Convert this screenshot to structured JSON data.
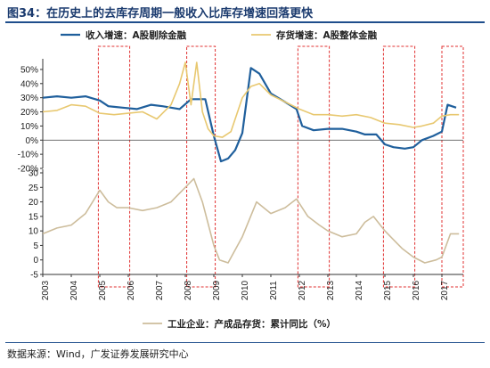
{
  "title": "图34：在历史上的去库存周期一般收入比库存增速回落更快",
  "source": "数据来源：Wind，广发证券发展研究中心",
  "colors": {
    "revenue": "#1f5f9c",
    "inventory": "#e8c870",
    "finished_goods": "#cdbd9c",
    "shade_border": "#e03030"
  },
  "chart_data": [
    {
      "type": "line",
      "ylim": [
        -20,
        55
      ],
      "yticks": [
        "50%",
        "40%",
        "30%",
        "20%",
        "10%",
        "0%",
        "-10%",
        "-20%"
      ],
      "yvalues": [
        50,
        40,
        30,
        20,
        10,
        0,
        -10,
        -20
      ],
      "series": [
        {
          "name": "收入增速：A股剔除金融",
          "x": [
            2003.0,
            2003.5,
            2004.0,
            2004.5,
            2005.0,
            2005.3,
            2005.8,
            2006.3,
            2006.8,
            2007.2,
            2007.8,
            2008.2,
            2008.5,
            2008.7,
            2009.0,
            2009.25,
            2009.5,
            2009.75,
            2010.0,
            2010.3,
            2010.6,
            2011.0,
            2011.5,
            2011.9,
            2012.1,
            2012.5,
            2013.0,
            2013.5,
            2014.0,
            2014.3,
            2014.7,
            2015.0,
            2015.3,
            2015.7,
            2016.0,
            2016.3,
            2016.7,
            2017.0,
            2017.2,
            2017.5
          ],
          "values": [
            30,
            31,
            30,
            31,
            28,
            24,
            23,
            22,
            25,
            24,
            22,
            29,
            29,
            29,
            3,
            -15,
            -13,
            -7,
            5,
            51,
            47,
            33,
            27,
            22,
            10,
            7,
            8,
            8,
            6,
            4,
            4,
            -3,
            -5,
            -6,
            -5,
            0,
            3,
            6,
            25,
            23
          ]
        },
        {
          "name": "存货增速：A股整体金融",
          "x": [
            2003.0,
            2003.5,
            2004.0,
            2004.5,
            2005.0,
            2005.5,
            2006.0,
            2006.5,
            2007.0,
            2007.5,
            2007.8,
            2008.0,
            2008.2,
            2008.4,
            2008.6,
            2008.8,
            2009.0,
            2009.3,
            2009.6,
            2010.0,
            2010.3,
            2010.6,
            2011.0,
            2011.5,
            2012.0,
            2012.5,
            2013.0,
            2013.5,
            2014.0,
            2014.5,
            2015.0,
            2015.5,
            2016.0,
            2016.3,
            2016.7,
            2017.0,
            2017.3,
            2017.6
          ],
          "values": [
            20,
            21,
            25,
            24,
            19,
            18,
            19,
            20,
            15,
            25,
            40,
            55,
            25,
            55,
            20,
            8,
            3,
            2,
            6,
            30,
            38,
            40,
            32,
            27,
            22,
            18,
            18,
            17,
            18,
            16,
            12,
            11,
            9,
            10,
            12,
            17,
            18,
            18
          ]
        }
      ]
    },
    {
      "type": "line",
      "ylim": [
        -5,
        30
      ],
      "yticks": [
        "30",
        "25",
        "20",
        "15",
        "10",
        "5",
        "0",
        "-5"
      ],
      "yvalues": [
        30,
        25,
        20,
        15,
        10,
        5,
        0,
        -5
      ],
      "series": [
        {
          "name": "工业企业：产成品存货：累计同比（%）",
          "x": [
            2003.0,
            2003.5,
            2004.0,
            2004.5,
            2005.0,
            2005.3,
            2005.6,
            2006.0,
            2006.5,
            2007.0,
            2007.5,
            2008.0,
            2008.3,
            2008.6,
            2009.0,
            2009.2,
            2009.5,
            2010.0,
            2010.5,
            2011.0,
            2011.5,
            2011.9,
            2012.3,
            2012.7,
            2013.0,
            2013.5,
            2014.0,
            2014.3,
            2014.6,
            2015.0,
            2015.3,
            2015.6,
            2016.0,
            2016.4,
            2016.8,
            2017.0,
            2017.3,
            2017.6
          ],
          "values": [
            9,
            11,
            12,
            16,
            24,
            20,
            18,
            18,
            17,
            18,
            20,
            25,
            28,
            20,
            5,
            0,
            -1,
            8,
            20,
            16,
            18,
            21,
            15,
            12,
            10,
            8,
            9,
            13,
            15,
            10,
            7,
            4,
            1,
            -1,
            0,
            1,
            9,
            9
          ]
        }
      ]
    }
  ],
  "x_axis": {
    "labels": [
      "2003",
      "2004",
      "2005",
      "2006",
      "2007",
      "2008",
      "2009",
      "2010",
      "2011",
      "2012",
      "2013",
      "2014",
      "2015",
      "2016",
      "2017"
    ],
    "values": [
      2003,
      2004,
      2005,
      2006,
      2007,
      2008,
      2009,
      2010,
      2011,
      2012,
      2013,
      2014,
      2015,
      2016,
      2017
    ],
    "range": [
      2003.0,
      2017.75
    ]
  },
  "shaded_periods": [
    [
      2004.95,
      2006.05
    ],
    [
      2008.05,
      2009.05
    ],
    [
      2011.95,
      2013.05
    ],
    [
      2014.95,
      2016.05
    ],
    [
      2017.0,
      2017.75
    ]
  ]
}
